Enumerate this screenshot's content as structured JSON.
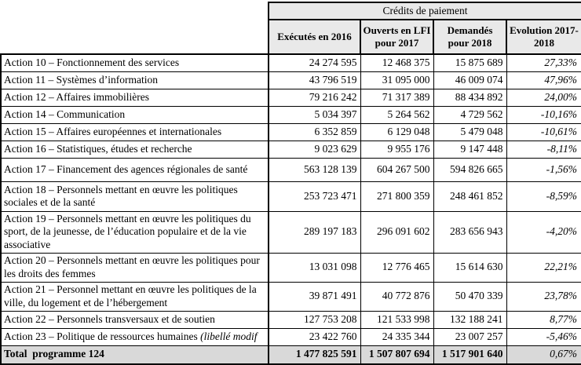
{
  "table": {
    "group_title": "Crédits de paiement",
    "columns": [
      "Exécutés en 2016",
      "Ouverts en LFI pour 2017",
      "Demandés pour 2018",
      "Evolution 2017-2018"
    ],
    "rows": [
      {
        "label": "Action 10 – Fonctionnement des services",
        "exec_2016": "24 274 595",
        "lfi_2017": "12 468 375",
        "dem_2018": "15 875 689",
        "evolution": "27,33%"
      },
      {
        "label": "Action 11 – Systèmes d’information",
        "exec_2016": "43 796 519",
        "lfi_2017": "31 095 000",
        "dem_2018": "46 009 074",
        "evolution": "47,96%"
      },
      {
        "label": "Action 12 – Affaires immobilières",
        "exec_2016": "79 216 242",
        "lfi_2017": "71 317 389",
        "dem_2018": "88 434 892",
        "evolution": "24,00%"
      },
      {
        "label": "Action 14 – Communication",
        "exec_2016": "5 034 397",
        "lfi_2017": "5 264 562",
        "dem_2018": "4 729 562",
        "evolution": "-10,16%"
      },
      {
        "label": "Action 15 – Affaires européennes et internationales",
        "exec_2016": "6 352 859",
        "lfi_2017": "6 129 048",
        "dem_2018": "5 479 048",
        "evolution": "-10,61%"
      },
      {
        "label": "Action 16 – Statistiques, études et recherche",
        "exec_2016": "9 023 629",
        "lfi_2017": "9 955 176",
        "dem_2018": "9 147 448",
        "evolution": "-8,11%"
      },
      {
        "label": "Action 17 – Financement des agences régionales de santé",
        "exec_2016": "563 128 139",
        "lfi_2017": "604 267 500",
        "dem_2018": "594 826 665",
        "evolution": "-1,56%"
      },
      {
        "label": "Action 18 – Personnels mettant en œuvre les politiques sociales et de la santé",
        "exec_2016": "253 723 471",
        "lfi_2017": "271 800 359",
        "dem_2018": "248 461 852",
        "evolution": "-8,59%"
      },
      {
        "label": "Action 19 – Personnels mettant en œuvre les politiques du sport, de la jeunesse, de l’éducation populaire et de la vie associative",
        "exec_2016": "289 197 183",
        "lfi_2017": "296 091 602",
        "dem_2018": "283 656 943",
        "evolution": "-4,20%"
      },
      {
        "label": "Action 20 – Personnels mettant en œuvre les politiques pour les droits des femmes",
        "exec_2016": "13 031 098",
        "lfi_2017": "12 776 465",
        "dem_2018": "15 614 630",
        "evolution": "22,21%"
      },
      {
        "label": "Action 21 – Personnel mettant en œuvre les politiques de la ville, du logement et de l’hébergement",
        "exec_2016": "39 871 491",
        "lfi_2017": "40 772 876",
        "dem_2018": "50 470 339",
        "evolution": "23,78%"
      },
      {
        "label": "Action 22 – Personnels transversaux et de soutien",
        "exec_2016": "127 753 208",
        "lfi_2017": "121 533 998",
        "dem_2018": "132 188 241",
        "evolution": "8,77%"
      },
      {
        "label": "Action 23 – Politique de ressources humaines ",
        "label_note": "(libellé modif",
        "exec_2016": "23 422 760",
        "lfi_2017": "24 335 344",
        "dem_2018": "23 007 257",
        "evolution": "-5,46%"
      }
    ],
    "total": {
      "label": "Total  programme 124",
      "exec_2016": "1 477 825 591",
      "lfi_2017": "1 507 807 694",
      "dem_2018": "1 517 901 640",
      "evolution": "0,67%"
    },
    "colors": {
      "header_bg": "#e9e9e9",
      "total_bg": "#d9d9d9",
      "border": "#000000"
    }
  }
}
